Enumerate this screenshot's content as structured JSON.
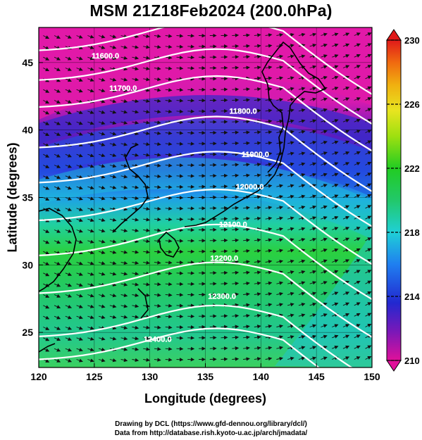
{
  "title": "MSM 21Z18Feb2024 (200.0hPa)",
  "xlabel": "Longitude (degrees)",
  "ylabel": "Latitude  (degrees)",
  "footer": {
    "line1": "Drawing by DCL (https://www.gfd-dennou.org/library/dcl/)",
    "line2": "Data from http://database.rish.kyoto-u.ac.jp/arch/jmadata/"
  },
  "map": {
    "lon_range": [
      120,
      150
    ],
    "lat_range": [
      22.4,
      47.6
    ],
    "x_ticks": [
      120,
      125,
      130,
      135,
      140,
      145,
      150
    ],
    "y_ticks": [
      25,
      30,
      35,
      40,
      45
    ],
    "colorbar": {
      "range": [
        210,
        230
      ],
      "tick_labels": [
        "230",
        "226",
        "222",
        "218",
        "214",
        "210"
      ],
      "colors": [
        "#e0109a",
        "#6a1ab8",
        "#1e30d8",
        "#1f8ff0",
        "#1fd6d6",
        "#22c87a",
        "#22cc22",
        "#8ee010",
        "#e0e020",
        "#f0b010",
        "#f06a10",
        "#e01a1a"
      ]
    },
    "contours": [
      {
        "label": "11600.0",
        "lon": 126.0,
        "lat": 45.3
      },
      {
        "label": "11700.0",
        "lon": 127.6,
        "lat": 42.9
      },
      {
        "label": "11800.0",
        "lon": 138.4,
        "lat": 41.2
      },
      {
        "label": "11900.0",
        "lon": 139.5,
        "lat": 38.0
      },
      {
        "label": "12000.0",
        "lon": 139.0,
        "lat": 35.6
      },
      {
        "label": "12100.0",
        "lon": 137.5,
        "lat": 32.8
      },
      {
        "label": "12200.0",
        "lon": 136.7,
        "lat": 30.3
      },
      {
        "label": "12300.0",
        "lon": 136.5,
        "lat": 27.5
      },
      {
        "label": "12400.0",
        "lon": 130.7,
        "lat": 24.3
      }
    ]
  }
}
